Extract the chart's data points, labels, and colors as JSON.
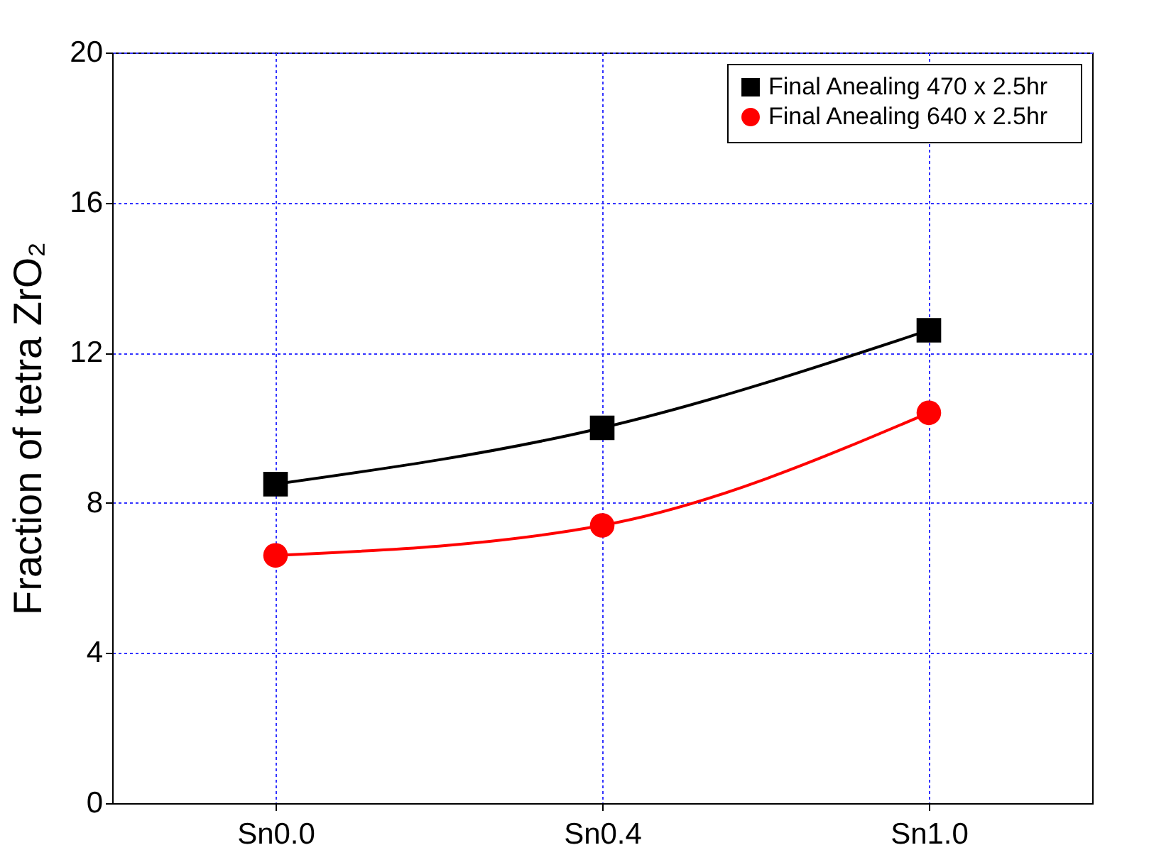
{
  "chart_data": {
    "type": "line",
    "ylabel": "Fraction of tetra ZrO₂",
    "categories": [
      "Sn0.0",
      "Sn0.4",
      "Sn1.0"
    ],
    "series": [
      {
        "name": "Final Anealing 470    x 2.5hr",
        "color": "#000000",
        "marker": "square",
        "values": [
          8.5,
          10.0,
          12.6
        ]
      },
      {
        "name": "Final Anealing 640    x 2.5hr",
        "color": "#ff0000",
        "marker": "circle",
        "values": [
          6.6,
          7.4,
          10.4
        ]
      }
    ],
    "ylim": [
      0,
      20
    ],
    "yticks": [
      0,
      4,
      8,
      12,
      16,
      20
    ],
    "grid": true,
    "legend": "top right",
    "line_style": "solid"
  }
}
